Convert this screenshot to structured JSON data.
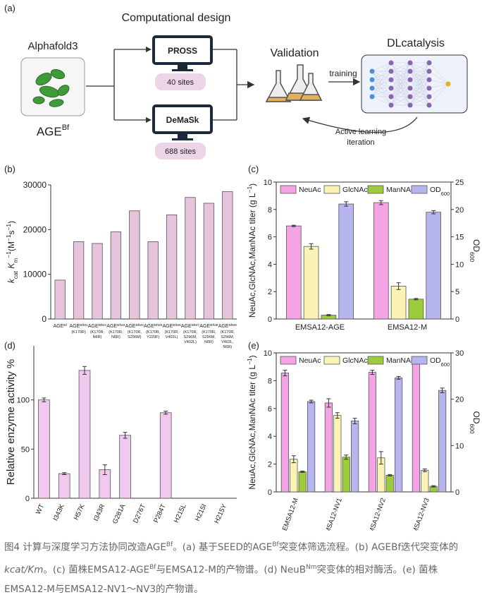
{
  "diagram": {
    "panel_label": "(a)",
    "tool": "Alphafold3",
    "protein_label": {
      "base": "AGE",
      "sup": "Bf"
    },
    "design_title": "Computational design",
    "method1": {
      "name": "PROSS",
      "sites": "40 sites"
    },
    "method2": {
      "name": "DeMaSk",
      "sites": "688 sites"
    },
    "validation": "Validation",
    "training": "training",
    "dl": "DLcatalysis",
    "loop": [
      "Active learning",
      "iteration"
    ]
  },
  "chart_data": [
    {
      "type": "bar",
      "panel_label": "(b)",
      "ylabel": [
        {
          "text": "k",
          "italic": true
        },
        {
          "text": "cat",
          "sub": true
        },
        {
          "text": " K",
          "italic": true
        },
        {
          "text": "m",
          "sub": true
        },
        {
          "text": "−1",
          "sup": true
        },
        {
          "text": "(M"
        },
        {
          "text": "−1",
          "sup": true
        },
        {
          "text": "s"
        },
        {
          "text": "−1",
          "sup": true
        },
        {
          "text": ")"
        }
      ],
      "categories": [
        {
          "base": "AGE",
          "sup": "Bf",
          "notes": []
        },
        {
          "base": "AGE",
          "sup": "BfM1",
          "notes": [
            "(K170R)"
          ]
        },
        {
          "base": "AGE",
          "sup": "BfM2",
          "notes": [
            "(K170R,",
            "N6R)"
          ]
        },
        {
          "base": "AGE",
          "sup": "BfM3",
          "notes": [
            "(K170R,",
            "N6R)"
          ]
        },
        {
          "base": "AGE",
          "sup": "BfM4",
          "notes": [
            "(K170R,",
            "S296M)"
          ]
        },
        {
          "base": "AGE",
          "sup": "BfM5",
          "notes": [
            "(K170R,",
            "Y220F)"
          ]
        },
        {
          "base": "AGE",
          "sup": "BfM6",
          "notes": [
            "(K170R,",
            "V402L)"
          ]
        },
        {
          "base": "AGE",
          "sup": "BfM7",
          "notes": [
            "(K170R,",
            "S296M,",
            "V402L)"
          ]
        },
        {
          "base": "AGE",
          "sup": "BfM8",
          "notes": [
            "(K170R,",
            "S296M,",
            "N6R)"
          ]
        },
        {
          "base": "AGE",
          "sup": "BfM9",
          "notes": [
            "(K170R,",
            "S296M,",
            "V402L,",
            "N6R)"
          ]
        }
      ],
      "values": [
        8700,
        17300,
        16900,
        19500,
        24200,
        17300,
        23300,
        27200,
        25900,
        28500
      ],
      "color": "#e6c4dc",
      "ylim": [
        0,
        30000
      ],
      "yticks": [
        0,
        10000,
        20000,
        30000
      ]
    },
    {
      "type": "bar",
      "panel_label": "(c)",
      "ylabel": [
        {
          "text": "NeuAc,GlcNAc,ManNAc titer (g L"
        },
        {
          "text": "−1",
          "sup": true
        },
        {
          "text": ")"
        }
      ],
      "y2label": [
        {
          "text": "OD"
        },
        {
          "text": "600",
          "sub": true
        }
      ],
      "categories": [
        "EMSA12-AGE",
        "EMSA12-M"
      ],
      "series": [
        {
          "name": "NeuAc",
          "color": "#f4a3e4",
          "values": [
            6.8,
            8.5
          ],
          "errors": [
            0.05,
            0.15
          ]
        },
        {
          "name": "GlcNAc",
          "color": "#fbf3b6",
          "values": [
            5.3,
            2.4
          ],
          "errors": [
            0.2,
            0.25
          ]
        },
        {
          "name": "ManNAc",
          "color": "#9ccc3c",
          "values": [
            0.28,
            1.45
          ],
          "errors": [
            0.05,
            0.05
          ]
        },
        {
          "name": "OD",
          "name_sub": "600",
          "color": "#b7b5ee",
          "axis": "y2",
          "values": [
            21.0,
            19.5
          ],
          "errors": [
            0.4,
            0.3
          ]
        }
      ],
      "ylim": [
        0,
        10
      ],
      "yticks": [
        0,
        2,
        4,
        6,
        8,
        10
      ],
      "y2lim": [
        0,
        25
      ],
      "y2ticks": [
        0,
        5,
        10,
        15,
        20,
        25
      ],
      "frame": true
    },
    {
      "type": "bar",
      "panel_label": "(d)",
      "ylabel": [
        {
          "text": "Relative enzyme activity %"
        }
      ],
      "categories": [
        "WT",
        "I343K",
        "H57K",
        "I343R",
        "G281A",
        "D276T",
        "P284T",
        "H215L",
        "H215I",
        "H215Y"
      ],
      "values": [
        100,
        25,
        130,
        29,
        64,
        0,
        87,
        0,
        0,
        0
      ],
      "errors": [
        2,
        1,
        4,
        5,
        3,
        0,
        1.5,
        0,
        0,
        0
      ],
      "color": "#f2c9ee",
      "ylim": [
        0,
        155
      ],
      "yticks": [
        0,
        50,
        100
      ]
    },
    {
      "type": "bar",
      "panel_label": "(e)",
      "ylabel": [
        {
          "text": "NeuAc,GlcNAc,ManNAc titer (g L"
        },
        {
          "text": "−1",
          "sup": true
        },
        {
          "text": ")"
        }
      ],
      "y2label": [
        {
          "text": "OD"
        },
        {
          "text": "600",
          "sub": true
        }
      ],
      "categories": [
        "EMSA12-M",
        "EMSA12-NV1",
        "EMSA12-NV2",
        "EMSA12-NV3"
      ],
      "series": [
        {
          "name": "NeuAc",
          "color": "#f4a3e4",
          "values": [
            8.55,
            6.4,
            8.6,
            9.25
          ],
          "errors": [
            0.2,
            0.3,
            0.15,
            0.05
          ]
        },
        {
          "name": "GlcNAc",
          "color": "#fbf3b6",
          "values": [
            2.35,
            5.5,
            2.45,
            1.55
          ],
          "errors": [
            0.25,
            0.2,
            0.45,
            0.1
          ]
        },
        {
          "name": "ManNAc",
          "color": "#9ccc3c",
          "values": [
            1.45,
            2.5,
            1.2,
            0.4
          ],
          "errors": [
            0.05,
            0.15,
            0.05,
            0.05
          ]
        },
        {
          "name": "OD",
          "name_sub": "600",
          "color": "#b7b5ee",
          "axis": "y2",
          "values": [
            19.5,
            15.3,
            24.6,
            21.9
          ],
          "errors": [
            0.3,
            0.6,
            0.3,
            0.5
          ]
        }
      ],
      "ylim": [
        0,
        10
      ],
      "yticks": [
        0,
        2,
        4,
        6,
        8,
        10
      ],
      "y2lim": [
        0,
        30
      ],
      "y2ticks": [
        0,
        10,
        20,
        30
      ],
      "frame": true
    }
  ],
  "caption": [
    {
      "text": "图4 计算与深度学习方法协同改造AGE"
    },
    {
      "text": "Bf",
      "sup": true
    },
    {
      "text": "。(a) 基于SEED的AGE"
    },
    {
      "text": "Bf",
      "sup": true
    },
    {
      "text": "突变体筛选流程。(b) AGEBf迭代突变体的"
    },
    {
      "text": "kcat/Km",
      "italic": true
    },
    {
      "text": "。(c) 菌株EMSA12-AGE"
    },
    {
      "text": "Bf",
      "sup": true
    },
    {
      "text": "与EMSA12-M的产物谱。(d) NeuB"
    },
    {
      "text": "Nm",
      "sup": true
    },
    {
      "text": "突变体的相对酶活。(e) 菌株EMSA12-M与EMSA12-NV1～NV3的产物谱。"
    }
  ]
}
